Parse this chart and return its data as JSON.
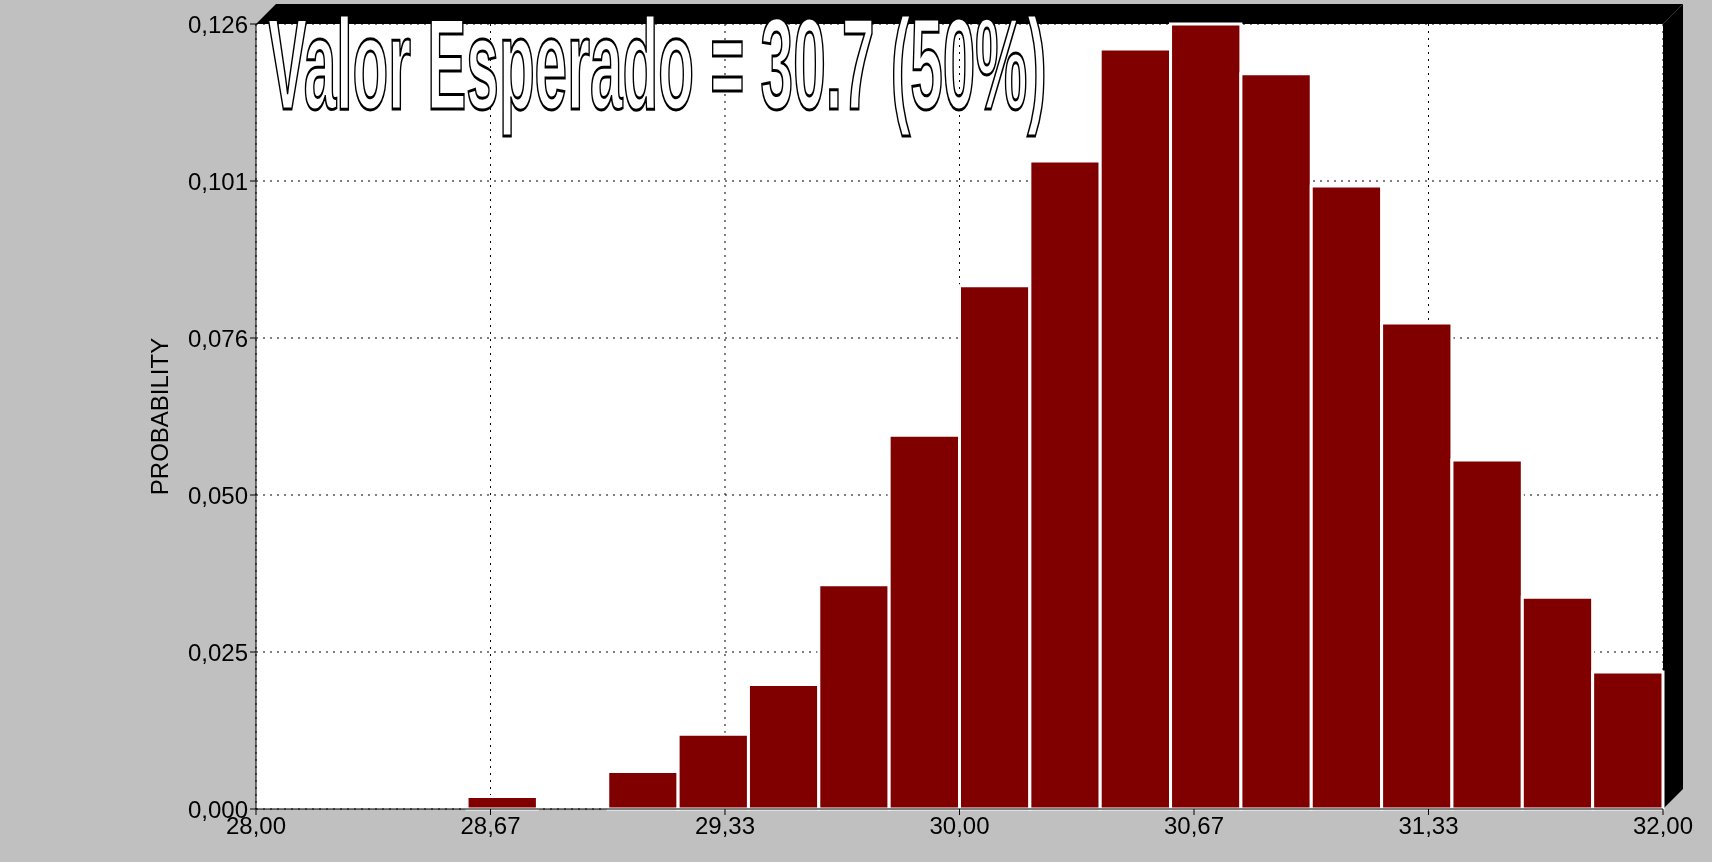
{
  "chart_data": {
    "type": "histogram",
    "title": "Valor Esperado = 30.7 (50%)",
    "ylabel": "PROBABILITY",
    "bins": [
      28.0,
      28.2,
      28.4,
      28.6,
      28.8,
      29.0,
      29.2,
      29.4,
      29.6,
      29.8,
      30.0,
      30.2,
      30.4,
      30.6,
      30.8,
      31.0,
      31.2,
      31.4,
      31.6,
      31.8,
      32.0
    ],
    "values": [
      0,
      0,
      0,
      0.002,
      0,
      0.006,
      0.012,
      0.02,
      0.036,
      0.06,
      0.084,
      0.104,
      0.122,
      0.126,
      0.118,
      0.1,
      0.078,
      0.056,
      0.034,
      0.022
    ],
    "color": "#800000",
    "xlim": [
      28,
      32
    ],
    "xticks": [
      {
        "value": 28,
        "label": "28,00"
      },
      {
        "value": 28.6667,
        "label": "28,67"
      },
      {
        "value": 29.3333,
        "label": "29,33"
      },
      {
        "value": 30,
        "label": "30,00"
      },
      {
        "value": 30.6667,
        "label": "30,67"
      },
      {
        "value": 31.3333,
        "label": "31,33"
      },
      {
        "value": 32,
        "label": "32,00"
      }
    ],
    "ylim": [
      0,
      0.126
    ],
    "yticks": [
      {
        "value": 0,
        "label": "0,000"
      },
      {
        "value": 0.0252,
        "label": "0,025"
      },
      {
        "value": 0.0504,
        "label": "0,050"
      },
      {
        "value": 0.0756,
        "label": "0,076"
      },
      {
        "value": 0.1008,
        "label": "0,101"
      },
      {
        "value": 0.126,
        "label": "0,126"
      }
    ],
    "grid": true
  }
}
